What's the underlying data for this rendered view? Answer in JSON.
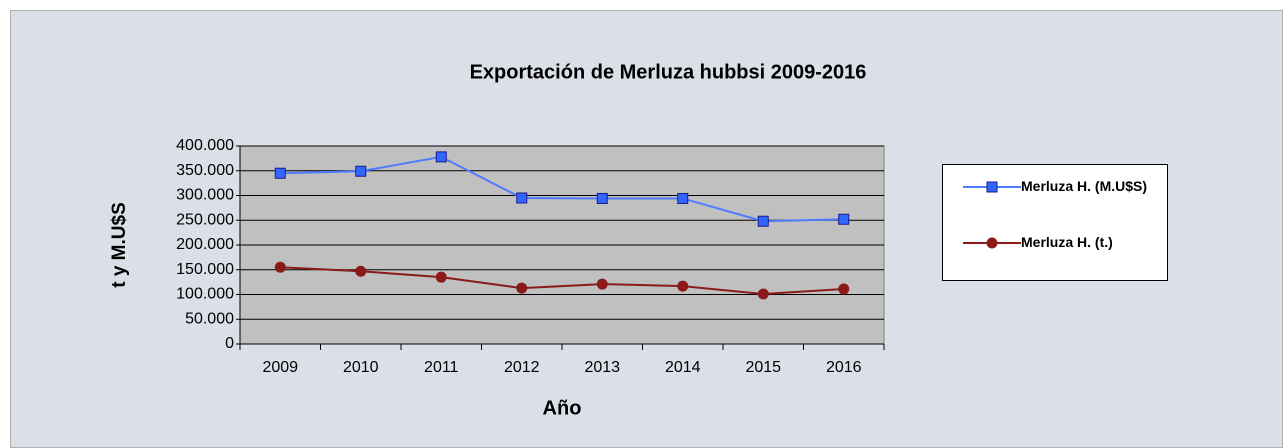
{
  "chart_data": {
    "type": "line",
    "title": "Exportación de Merluza hubbsi 2009-2016",
    "x_label": "Año",
    "y_label": "t y M.U$S",
    "categories": [
      "2009",
      "2010",
      "2011",
      "2012",
      "2013",
      "2014",
      "2015",
      "2016"
    ],
    "series": [
      {
        "name": "Merluza H. (M.U$S)",
        "color": "#4d7cff",
        "marker": "square",
        "values": [
          345000,
          349000,
          378000,
          295000,
          294000,
          294000,
          248000,
          252000
        ]
      },
      {
        "name": "Merluza H. (t.)",
        "color": "#8b1a1a",
        "marker": "circle",
        "values": [
          155000,
          147000,
          135000,
          113000,
          121000,
          117000,
          101000,
          111000
        ]
      }
    ],
    "ylim": [
      0,
      400000
    ],
    "yticks": [
      0,
      {
        "value": 50000,
        "label": "50.000"
      },
      {
        "value": 100000,
        "label": "100.000"
      },
      {
        "value": 150000,
        "label": "150.000"
      },
      {
        "value": 200000,
        "label": "200.000"
      },
      {
        "value": 250000,
        "label": "250.000"
      },
      {
        "value": 300000,
        "label": "300.000"
      },
      {
        "value": 350000,
        "label": "350.000"
      },
      {
        "value": 400000,
        "label": "400.000"
      }
    ],
    "grid": true,
    "legend": "right"
  }
}
